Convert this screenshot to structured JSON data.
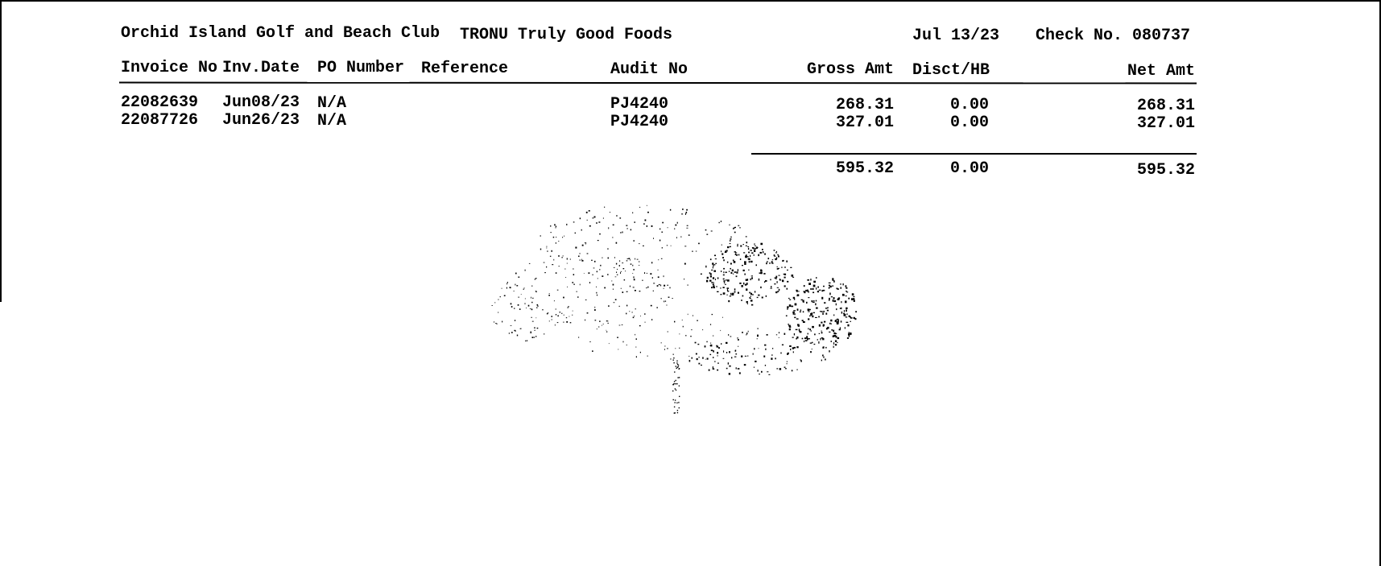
{
  "header": {
    "payer": "Orchid Island Golf and Beach Club",
    "payee": "TRONU Truly Good Foods",
    "date": "Jul 13/23",
    "check_label": "Check No. 080737"
  },
  "columns": {
    "invoice_no": "Invoice No",
    "inv_date": "Inv.Date",
    "po_number": "PO Number",
    "reference": "Reference",
    "audit_no": "Audit No",
    "gross_amt": "Gross Amt",
    "disct": "Disct/HB",
    "net_amt": "Net Amt"
  },
  "rows": [
    {
      "invoice_no": "22082639",
      "inv_date": "Jun08/23",
      "po_number": "N/A",
      "audit_no": "PJ4240",
      "gross": "268.31",
      "disct": "0.00",
      "net": "268.31"
    },
    {
      "invoice_no": "22087726",
      "inv_date": "Jun26/23",
      "po_number": "N/A",
      "audit_no": "PJ4240",
      "gross": "327.01",
      "disct": "0.00",
      "net": "327.01"
    }
  ],
  "totals": {
    "gross": "595.32",
    "disct": "0.00",
    "net": "595.32"
  },
  "watermark": {
    "icon": "tree-watermark-icon",
    "color": "#000000"
  }
}
